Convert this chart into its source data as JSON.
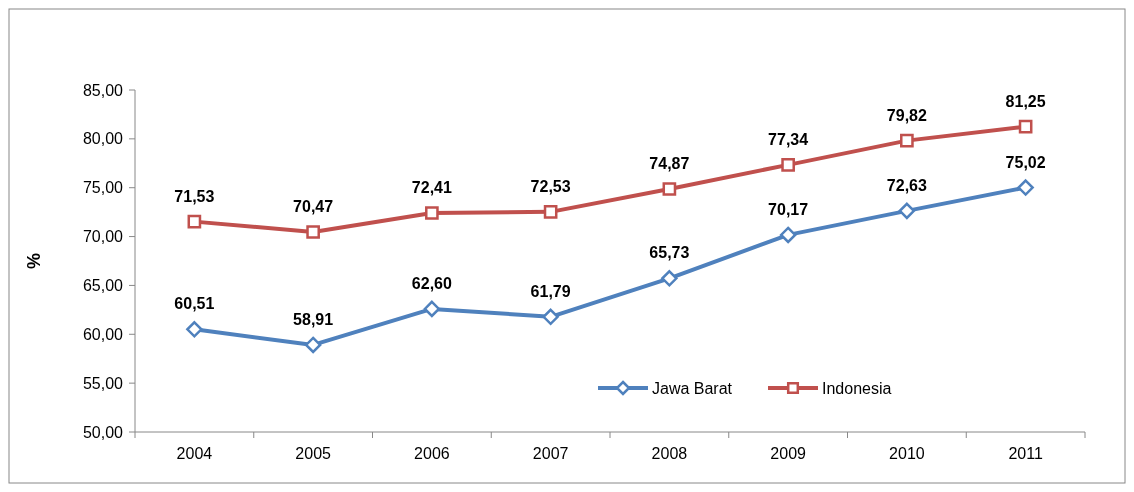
{
  "chart_data": {
    "type": "line",
    "ylabel": "%",
    "categories": [
      "2004",
      "2005",
      "2006",
      "2007",
      "2008",
      "2009",
      "2010",
      "2011"
    ],
    "series": [
      {
        "name": "Jawa Barat",
        "color": "#4f81bd",
        "marker": "diamond",
        "values": [
          60.51,
          58.91,
          62.6,
          61.79,
          65.73,
          70.17,
          72.63,
          75.02
        ],
        "value_labels": [
          "60,51",
          "58,91",
          "62,60",
          "61,79",
          "65,73",
          "70,17",
          "72,63",
          "75,02"
        ]
      },
      {
        "name": "Indonesia",
        "color": "#c0504d",
        "marker": "square",
        "values": [
          71.53,
          70.47,
          72.41,
          72.53,
          74.87,
          77.34,
          79.82,
          81.25
        ],
        "value_labels": [
          "71,53",
          "70,47",
          "72,41",
          "72,53",
          "74,87",
          "77,34",
          "79,82",
          "81,25"
        ]
      }
    ],
    "ylim": [
      50,
      85
    ],
    "yticks": [
      {
        "value": 50,
        "label": "50,00"
      },
      {
        "value": 55,
        "label": "55,00"
      },
      {
        "value": 60,
        "label": "60,00"
      },
      {
        "value": 65,
        "label": "65,00"
      },
      {
        "value": 70,
        "label": "70,00"
      },
      {
        "value": 75,
        "label": "75,00"
      },
      {
        "value": 80,
        "label": "80,00"
      },
      {
        "value": 85,
        "label": "85,00"
      }
    ],
    "grid": false,
    "legend": "bottom right",
    "line_style": "solid"
  }
}
